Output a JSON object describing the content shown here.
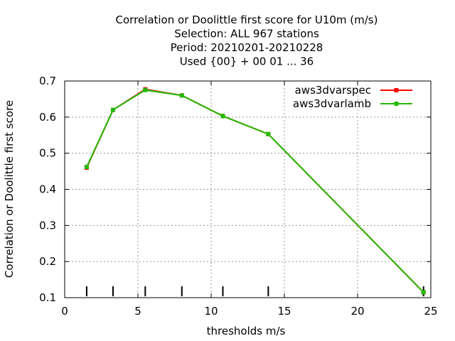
{
  "chart_data": {
    "type": "line",
    "title_lines": [
      "Correlation or Doolittle first score  for U10m (m/s)",
      "Selection: ALL    967 stations",
      "Period: 20210201-20210228",
      "Used {00} + 00 01 ... 36"
    ],
    "xlabel": "thresholds m/s",
    "ylabel": "Correlation or Doolittle first score",
    "xlim": [
      0,
      25
    ],
    "ylim": [
      0.1,
      0.7
    ],
    "xticks": [
      0,
      5,
      10,
      15,
      20,
      25
    ],
    "yticks": [
      0.1,
      0.2,
      0.3,
      0.4,
      0.5,
      0.6,
      0.7
    ],
    "grid": true,
    "legend_position": "top-right",
    "threshold_markers": [
      1.5,
      3.3,
      5.5,
      8.0,
      10.8,
      13.9,
      24.5
    ],
    "series": [
      {
        "name": "aws3dvarspec",
        "color": "#ff0000",
        "x": [
          1.5,
          3.3,
          5.5,
          8.0,
          10.8,
          13.9,
          24.5
        ],
        "y": [
          0.46,
          0.62,
          0.677,
          0.66,
          0.603,
          0.553,
          0.115
        ]
      },
      {
        "name": "aws3dvarlamb",
        "color": "#22bb00",
        "x": [
          1.5,
          3.3,
          5.5,
          8.0,
          10.8,
          13.9,
          24.5
        ],
        "y": [
          0.462,
          0.62,
          0.675,
          0.66,
          0.603,
          0.553,
          0.115
        ]
      }
    ]
  }
}
